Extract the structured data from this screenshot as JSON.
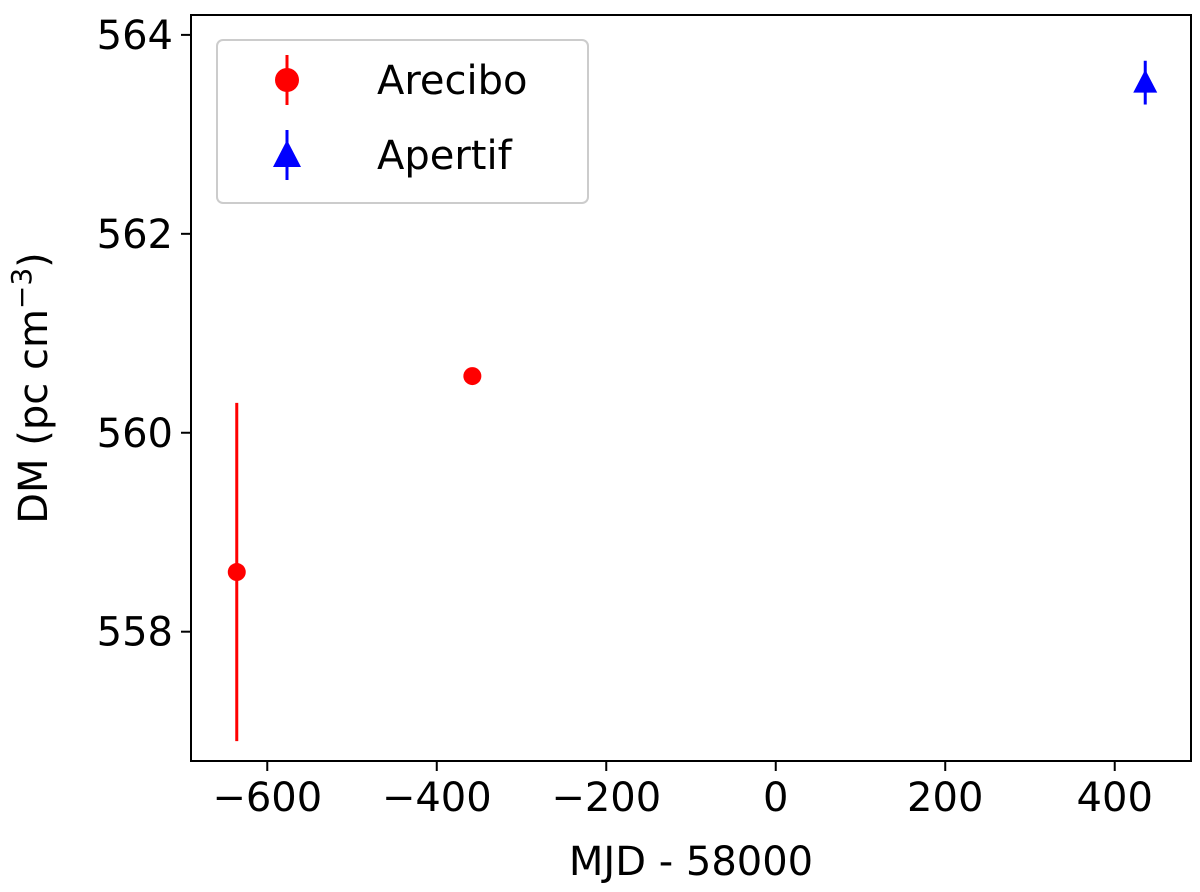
{
  "chart_data": {
    "type": "scatter",
    "title": "",
    "xlabel": "MJD - 58000",
    "ylabel_parts": {
      "main": "DM (pc cm",
      "superscript": "−3",
      "close": ")"
    },
    "xlim": [
      -690,
      490
    ],
    "ylim": [
      556.7,
      564.2
    ],
    "xticks": [
      -600,
      -400,
      -200,
      0,
      200,
      400
    ],
    "xtick_labels": [
      "−600",
      "−400",
      "−200",
      "0",
      "200",
      "400"
    ],
    "yticks": [
      558,
      560,
      562,
      564
    ],
    "ytick_labels": [
      "558",
      "560",
      "562",
      "564"
    ],
    "grid": false,
    "legend_position": "top-left",
    "series": [
      {
        "name": "Arecibo",
        "marker": "circle",
        "color": "#ff0000",
        "points": [
          {
            "x": -636,
            "y": 558.6,
            "err": 1.7
          },
          {
            "x": -358,
            "y": 560.57,
            "err": 0.0
          }
        ]
      },
      {
        "name": "Apertif",
        "marker": "triangle",
        "color": "#0000ff",
        "points": [
          {
            "x": 436,
            "y": 563.52,
            "err": 0.22
          }
        ]
      }
    ]
  }
}
